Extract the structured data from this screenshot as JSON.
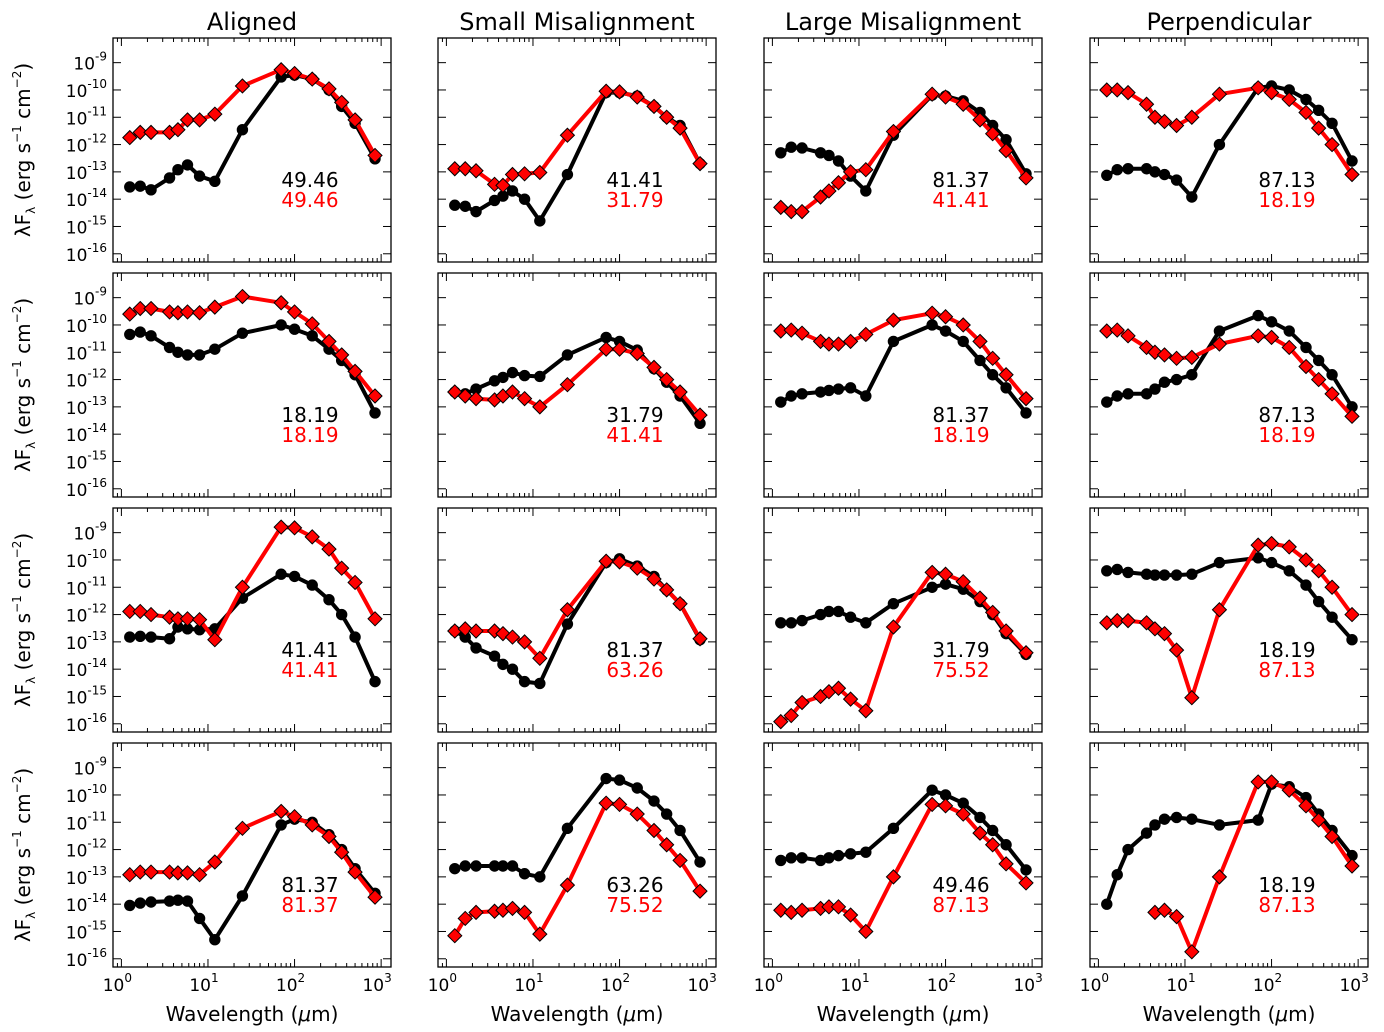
{
  "figure": {
    "columns": [
      "Aligned",
      "Small Misalignment",
      "Large Misalignment",
      "Perpendicular"
    ],
    "ylabel_parts": {
      "lead": "λF",
      "sub": "λ",
      "mid": " (erg s",
      "sup1": "−1",
      "mid2": " cm",
      "sup2": "−2",
      "end": ")"
    },
    "xlabel_parts": {
      "lead": "Wavelength (",
      "mu": "μ",
      "end": "m)"
    },
    "x_ticks": [
      {
        "base": "10",
        "exp": "0",
        "v": 0
      },
      {
        "base": "10",
        "exp": "1",
        "v": 1
      },
      {
        "base": "10",
        "exp": "2",
        "v": 2
      },
      {
        "base": "10",
        "exp": "3",
        "v": 3
      }
    ],
    "y_ticks": [
      {
        "base": "10",
        "exp": "-9",
        "v": -9
      },
      {
        "base": "10",
        "exp": "-10",
        "v": -10
      },
      {
        "base": "10",
        "exp": "-11",
        "v": -11
      },
      {
        "base": "10",
        "exp": "-12",
        "v": -12
      },
      {
        "base": "10",
        "exp": "-13",
        "v": -13
      },
      {
        "base": "10",
        "exp": "-14",
        "v": -14
      },
      {
        "base": "10",
        "exp": "-15",
        "v": -15
      },
      {
        "base": "10",
        "exp": "-16",
        "v": -16
      }
    ],
    "colors": {
      "black_series": "#000000",
      "red_series": "#ff0000"
    }
  },
  "chart_data": {
    "type": "line",
    "xscale": "log",
    "yscale": "log",
    "xlim": [
      0.8,
      1300
    ],
    "ylim": [
      5e-17,
      8e-09
    ],
    "wavelengths_um": [
      1.25,
      1.65,
      2.2,
      3.6,
      4.5,
      5.8,
      8.0,
      12,
      25,
      70,
      100,
      160,
      250,
      350,
      500,
      850
    ],
    "series_style": {
      "black": "circle markers",
      "red": "diamond markers"
    },
    "panels": [
      {
        "row": 1,
        "col": 1,
        "labels": [
          "49.46",
          "49.46"
        ],
        "black": [
          2.8e-14,
          3e-14,
          2.2e-14,
          6e-14,
          1.2e-13,
          1.8e-13,
          7e-14,
          4.5e-14,
          3.5e-12,
          3e-10,
          3.5e-10,
          2.5e-10,
          1e-10,
          2.5e-11,
          6e-12,
          3e-13
        ],
        "red": [
          1.8e-12,
          2.8e-12,
          2.8e-12,
          2.8e-12,
          3.5e-12,
          8e-12,
          8e-12,
          1.3e-11,
          1.4e-10,
          5.5e-10,
          4e-10,
          2.5e-10,
          1.1e-10,
          3.5e-11,
          8e-12,
          4e-13
        ]
      },
      {
        "row": 1,
        "col": 2,
        "labels": [
          "41.41",
          "31.79"
        ],
        "black": [
          6e-15,
          5.5e-15,
          3.5e-15,
          9e-15,
          1.3e-14,
          2e-14,
          1e-14,
          1.6e-15,
          8e-14,
          8e-11,
          8e-11,
          6e-11,
          2.5e-11,
          1e-11,
          5e-12,
          2e-13
        ],
        "red": [
          1.3e-13,
          1.3e-13,
          1.1e-13,
          3.5e-14,
          3.2e-14,
          8e-14,
          8.5e-14,
          9.5e-14,
          2.2e-12,
          9e-11,
          8.5e-11,
          5.5e-11,
          2.5e-11,
          1e-11,
          4e-12,
          2e-13
        ]
      },
      {
        "row": 1,
        "col": 3,
        "labels": [
          "81.37",
          "41.41"
        ],
        "black": [
          5e-13,
          8e-13,
          7.5e-13,
          5e-13,
          4e-13,
          2.5e-13,
          7e-14,
          2e-14,
          2.2e-12,
          6.5e-11,
          6e-11,
          4e-11,
          1.5e-11,
          5e-12,
          1.5e-12,
          8.5e-14
        ],
        "red": [
          5e-15,
          3.5e-15,
          3.5e-15,
          1.2e-14,
          2e-14,
          4e-14,
          1e-13,
          1.2e-13,
          3e-12,
          7e-11,
          5.5e-11,
          3e-11,
          8e-12,
          2.5e-12,
          6e-13,
          6e-14
        ]
      },
      {
        "row": 1,
        "col": 4,
        "labels": [
          "87.13",
          "18.19"
        ],
        "black": [
          7.5e-14,
          1.2e-13,
          1.3e-13,
          1.3e-13,
          1e-13,
          8e-14,
          5e-14,
          1.2e-14,
          1e-12,
          1.2e-10,
          1.4e-10,
          1e-10,
          4.5e-11,
          1.8e-11,
          6e-12,
          2.5e-13
        ],
        "red": [
          1e-10,
          1e-10,
          8e-11,
          3e-11,
          1e-11,
          7e-12,
          5e-12,
          1e-11,
          7e-11,
          1.2e-10,
          8e-11,
          4.5e-11,
          1.5e-11,
          4e-12,
          1e-12,
          8e-14
        ]
      },
      {
        "row": 2,
        "col": 1,
        "labels": [
          "18.19",
          "18.19"
        ],
        "black": [
          4.5e-11,
          5.5e-11,
          4e-11,
          1.5e-11,
          1e-11,
          8e-12,
          8e-12,
          1.3e-11,
          5e-11,
          1e-10,
          7e-11,
          4e-11,
          1.3e-11,
          5e-12,
          1.5e-12,
          6e-14
        ],
        "red": [
          2.5e-10,
          4e-10,
          4e-10,
          3e-10,
          2.8e-10,
          3e-10,
          2.8e-10,
          4.5e-10,
          1.1e-09,
          6.5e-10,
          3e-10,
          1.1e-10,
          2.5e-11,
          8e-12,
          2e-12,
          2.5e-13
        ]
      },
      {
        "row": 2,
        "col": 2,
        "labels": [
          "31.79",
          "41.41"
        ],
        "black": [
          3.5e-13,
          3e-13,
          4.5e-13,
          9e-13,
          1.2e-12,
          1.8e-12,
          1.4e-12,
          1.3e-12,
          8e-12,
          3.5e-11,
          2.5e-11,
          1.2e-11,
          2.5e-12,
          8e-13,
          2.5e-13,
          2.5e-14
        ],
        "red": [
          3.5e-13,
          2.5e-13,
          2e-13,
          1.8e-13,
          2.5e-13,
          3.5e-13,
          2e-13,
          1e-13,
          6.5e-13,
          1.3e-11,
          1.3e-11,
          9e-12,
          2.8e-12,
          1e-12,
          3.5e-13,
          5e-14
        ]
      },
      {
        "row": 2,
        "col": 3,
        "labels": [
          "81.37",
          "18.19"
        ],
        "black": [
          1.5e-13,
          2.5e-13,
          3e-13,
          3.5e-13,
          4e-13,
          4.5e-13,
          5e-13,
          2.5e-13,
          2.5e-11,
          1e-10,
          6e-11,
          2.5e-11,
          5e-12,
          1.5e-12,
          5e-13,
          6e-14
        ],
        "red": [
          6e-11,
          6.5e-11,
          5e-11,
          2.5e-11,
          2e-11,
          2e-11,
          2.5e-11,
          4.5e-11,
          1.5e-10,
          2.7e-10,
          2e-10,
          1e-10,
          2.5e-11,
          6e-12,
          1.5e-12,
          2e-13
        ]
      },
      {
        "row": 2,
        "col": 4,
        "labels": [
          "87.13",
          "18.19"
        ],
        "black": [
          1.5e-13,
          2.5e-13,
          3e-13,
          3e-13,
          4.5e-13,
          8e-13,
          1e-12,
          1.5e-12,
          6e-11,
          2.2e-10,
          1.3e-10,
          6e-11,
          1.5e-11,
          5e-12,
          1.5e-12,
          1e-13
        ],
        "red": [
          6e-11,
          6.5e-11,
          4e-11,
          1.5e-11,
          1e-11,
          8e-12,
          6e-12,
          6.5e-12,
          2e-11,
          4e-11,
          3.5e-11,
          1.5e-11,
          3e-12,
          1e-12,
          3e-13,
          4.5e-14
        ]
      },
      {
        "row": 3,
        "col": 1,
        "labels": [
          "41.41",
          "41.41"
        ],
        "black": [
          1.5e-13,
          1.6e-13,
          1.5e-13,
          1.3e-13,
          3.5e-13,
          3e-13,
          2.8e-13,
          3e-13,
          4e-12,
          3e-11,
          2.5e-11,
          1.2e-11,
          3.5e-12,
          1e-12,
          1.5e-13,
          3.5e-15
        ],
        "red": [
          1.3e-12,
          1.3e-12,
          1e-12,
          8e-13,
          7e-13,
          7e-13,
          6.5e-13,
          1.2e-13,
          1e-11,
          1.6e-09,
          1.5e-09,
          7e-10,
          2.5e-10,
          5e-11,
          1.5e-11,
          7e-13
        ]
      },
      {
        "row": 3,
        "col": 2,
        "labels": [
          "81.37",
          "63.26"
        ],
        "black": [
          2.5e-13,
          1.5e-13,
          6e-14,
          3e-14,
          1.5e-14,
          1e-14,
          3.5e-15,
          3e-15,
          4.5e-13,
          8e-11,
          1.1e-10,
          6e-11,
          2.5e-11,
          8e-12,
          2.5e-12,
          1.2e-13
        ],
        "red": [
          2.5e-13,
          3e-13,
          2.5e-13,
          2.5e-13,
          2e-13,
          1.5e-13,
          1e-13,
          2.5e-14,
          1.5e-12,
          9e-11,
          8.5e-11,
          5e-11,
          2e-11,
          8e-12,
          2.5e-12,
          1.3e-13
        ]
      },
      {
        "row": 3,
        "col": 3,
        "labels": [
          "31.79",
          "75.52"
        ],
        "black": [
          5e-13,
          5e-13,
          6e-13,
          1e-12,
          1.3e-12,
          1.3e-12,
          8e-13,
          5e-13,
          2.5e-12,
          1e-11,
          1.3e-11,
          8.5e-12,
          3e-12,
          1e-12,
          2e-13,
          3.5e-14
        ],
        "red": [
          1.2e-16,
          2e-16,
          6e-16,
          1e-15,
          1.5e-15,
          2e-15,
          8e-16,
          3e-16,
          3.5e-13,
          3.5e-11,
          3e-11,
          1.6e-11,
          4e-12,
          1.2e-12,
          2.5e-13,
          4e-14
        ]
      },
      {
        "row": 3,
        "col": 4,
        "labels": [
          "18.19",
          "87.13"
        ],
        "black": [
          4e-11,
          4.5e-11,
          3.5e-11,
          3e-11,
          2.8e-11,
          2.8e-11,
          2.8e-11,
          3e-11,
          8e-11,
          1.2e-10,
          8e-11,
          4e-11,
          1.2e-11,
          3e-12,
          8e-13,
          1.2e-13
        ],
        "red": [
          5e-13,
          6e-13,
          6e-13,
          5e-13,
          3e-13,
          2e-13,
          5e-14,
          9e-16,
          1.5e-12,
          3.5e-10,
          4e-10,
          3e-10,
          1e-10,
          4e-11,
          1e-11,
          1e-12
        ]
      },
      {
        "row": 4,
        "col": 1,
        "labels": [
          "81.37",
          "81.37"
        ],
        "black": [
          9e-15,
          1.1e-14,
          1.2e-14,
          1.3e-14,
          1.4e-14,
          1.3e-14,
          3e-15,
          5e-16,
          2e-14,
          8e-12,
          1.3e-11,
          1e-11,
          3.5e-12,
          1e-12,
          2e-13,
          2.5e-14
        ],
        "red": [
          1.2e-13,
          1.5e-13,
          1.5e-13,
          1.5e-13,
          1.4e-13,
          1.4e-13,
          1.2e-13,
          3.5e-13,
          6e-12,
          2.5e-11,
          1.6e-11,
          8e-12,
          3e-12,
          8e-13,
          1.5e-13,
          1.8e-14
        ]
      },
      {
        "row": 4,
        "col": 2,
        "labels": [
          "63.26",
          "75.52"
        ],
        "black": [
          2e-13,
          2.5e-13,
          2.5e-13,
          2.5e-13,
          2.5e-13,
          2.5e-13,
          1.3e-13,
          1e-13,
          6e-12,
          4e-10,
          3.5e-10,
          1.8e-10,
          6e-11,
          2e-11,
          5e-12,
          3.5e-13
        ],
        "red": [
          7e-16,
          3e-15,
          5e-15,
          5.5e-15,
          6e-15,
          7e-15,
          5e-15,
          8e-16,
          5e-14,
          5e-11,
          4.5e-11,
          2e-11,
          5e-12,
          1.5e-12,
          4e-13,
          3e-14
        ]
      },
      {
        "row": 4,
        "col": 3,
        "labels": [
          "49.46",
          "87.13"
        ],
        "black": [
          4e-13,
          5e-13,
          5e-13,
          4e-13,
          5e-13,
          6e-13,
          7e-13,
          8e-13,
          6e-12,
          1.5e-10,
          1e-10,
          5e-11,
          1.5e-11,
          5e-12,
          1.5e-12,
          1.8e-13
        ],
        "red": [
          6e-15,
          5e-15,
          6e-15,
          7e-15,
          8e-15,
          8e-15,
          4e-15,
          1e-15,
          1e-13,
          4.5e-11,
          4e-11,
          2e-11,
          4e-12,
          1.5e-12,
          3e-13,
          6e-14
        ]
      },
      {
        "row": 4,
        "col": 4,
        "labels": [
          "18.19",
          "87.13"
        ],
        "black": [
          1e-14,
          1.2e-13,
          1e-12,
          4e-12,
          8e-12,
          1.3e-11,
          1.5e-11,
          1.3e-11,
          8e-12,
          1.2e-11,
          2.5e-10,
          2e-10,
          8e-11,
          2e-11,
          5e-12,
          6e-13
        ],
        "red": [
          null,
          null,
          null,
          null,
          5e-15,
          6e-15,
          3.5e-15,
          1.8e-16,
          1e-13,
          3e-10,
          3e-10,
          1.5e-10,
          4e-11,
          1.2e-11,
          3e-12,
          2.5e-13
        ]
      }
    ]
  }
}
